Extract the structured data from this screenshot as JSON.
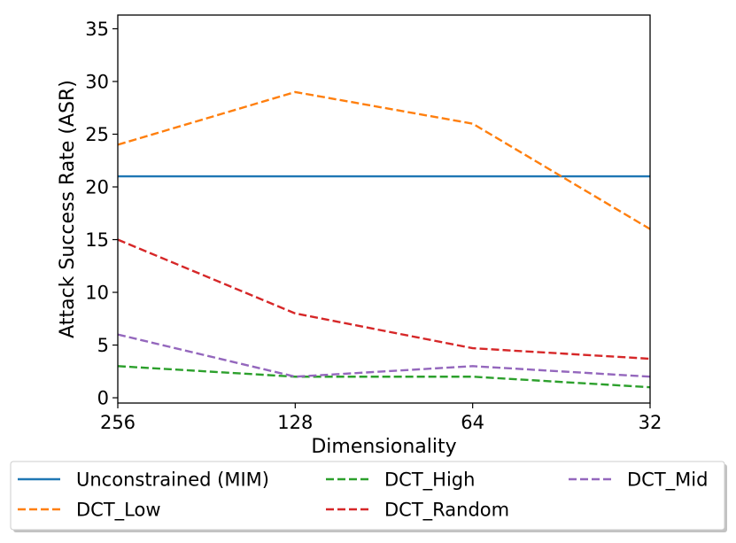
{
  "chart_data": {
    "type": "line",
    "title": "",
    "xlabel": "Dimensionality",
    "ylabel": "Attack Success Rate (ASR)",
    "categories": [
      "256",
      "128",
      "64",
      "32"
    ],
    "ylim": [
      -0.5,
      36.3
    ],
    "yticks": [
      0,
      5,
      10,
      15,
      20,
      25,
      30,
      35
    ],
    "grid": false,
    "legend_position": "below",
    "series": [
      {
        "name": "Unconstrained (MIM)",
        "values": [
          21,
          21,
          21,
          21
        ],
        "color": "#1f77b4",
        "style": "solid"
      },
      {
        "name": "DCT_Low",
        "values": [
          24,
          29,
          26,
          16
        ],
        "color": "#ff7f0e",
        "style": "dashed"
      },
      {
        "name": "DCT_High",
        "values": [
          3,
          2,
          2,
          1
        ],
        "color": "#2ca02c",
        "style": "dashed"
      },
      {
        "name": "DCT_Random",
        "values": [
          15,
          8,
          4.7,
          3.7
        ],
        "color": "#d62728",
        "style": "dashed"
      },
      {
        "name": "DCT_Mid",
        "values": [
          6,
          2,
          3,
          2
        ],
        "color": "#9467bd",
        "style": "dashed"
      }
    ]
  }
}
